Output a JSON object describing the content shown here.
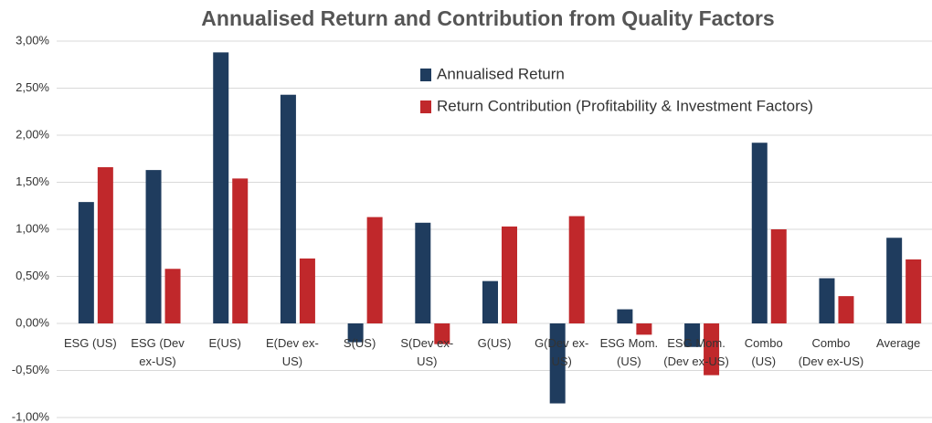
{
  "chart_data": {
    "type": "bar",
    "title": "Annualised Return and Contribution from Quality Factors",
    "categories": [
      "ESG (US)",
      "ESG (Dev ex-US)",
      "E(US)",
      "E(Dev ex-US)",
      "S(US)",
      "S(Dev ex-US)",
      "G(US)",
      "G(Dev ex-US)",
      "ESG Mom. (US)",
      "ESG Mom. (Dev ex-US)",
      "Combo (US)",
      "Combo (Dev ex-US)",
      "Average"
    ],
    "series": [
      {
        "name": "Annualised Return",
        "color": "#1f3c5e",
        "values": [
          1.29,
          1.63,
          2.88,
          2.43,
          -0.2,
          1.07,
          0.45,
          -0.85,
          0.15,
          -0.25,
          1.92,
          0.48,
          0.91
        ]
      },
      {
        "name": "Return Contribution (Profitability & Investment Factors)",
        "color": "#c0282b",
        "values": [
          1.66,
          0.58,
          1.54,
          0.69,
          1.13,
          -0.22,
          1.03,
          1.14,
          -0.12,
          -0.55,
          1.0,
          0.29,
          0.68
        ]
      }
    ],
    "ylim": [
      -1,
      3
    ],
    "yticks": [
      {
        "value": -1,
        "label": "-1,00%"
      },
      {
        "value": -0.5,
        "label": "-0,50%"
      },
      {
        "value": 0,
        "label": "0,00%"
      },
      {
        "value": 0.5,
        "label": "0,50%"
      },
      {
        "value": 1,
        "label": "1,00%"
      },
      {
        "value": 1.5,
        "label": "1,50%"
      },
      {
        "value": 2,
        "label": "2,00%"
      },
      {
        "value": 2.5,
        "label": "2,50%"
      },
      {
        "value": 3,
        "label": "3,00%"
      }
    ],
    "grid": true
  }
}
